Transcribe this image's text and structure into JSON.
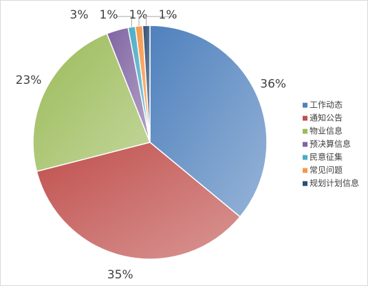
{
  "chart_data": {
    "type": "pie",
    "categories": [
      "工作动态",
      "通知公告",
      "物业信息",
      "预决算信息",
      "民意征集",
      "常见问题",
      "规划计划信息"
    ],
    "values": [
      36,
      35,
      23,
      3,
      1,
      1,
      1
    ],
    "value_labels": [
      "36%",
      "35%",
      "23%",
      "3%",
      "1%",
      "1%",
      "1%"
    ],
    "colors": [
      "#4f81bd",
      "#c0504d",
      "#9bbb59",
      "#8064a2",
      "#4bacc6",
      "#f79646",
      "#2c4d75"
    ],
    "legend": "right"
  }
}
